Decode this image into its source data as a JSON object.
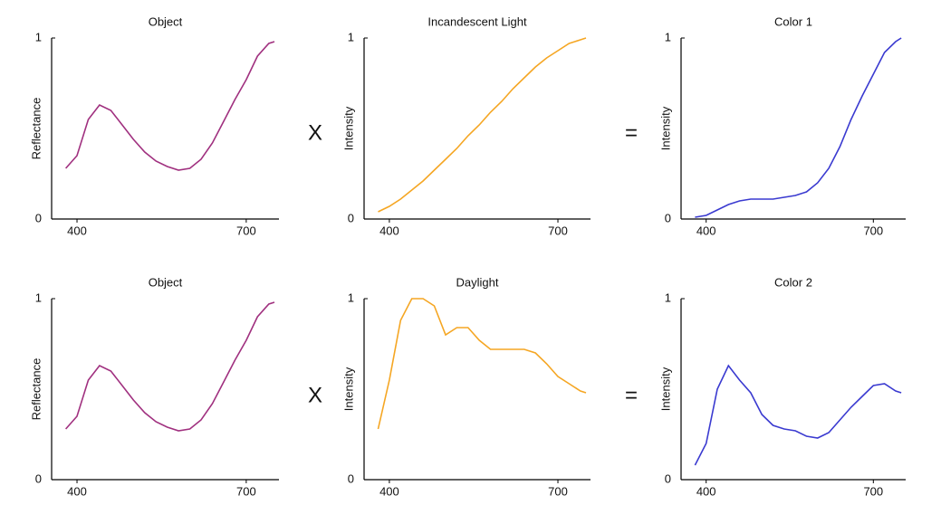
{
  "chart_data": [
    {
      "type": "line",
      "title": "Object",
      "ylabel": "Reflectance",
      "color": "#a0307f",
      "x": [
        380,
        400,
        420,
        440,
        460,
        480,
        500,
        520,
        540,
        560,
        580,
        600,
        620,
        640,
        660,
        680,
        700,
        720,
        740,
        750
      ],
      "values": [
        0.28,
        0.35,
        0.55,
        0.63,
        0.6,
        0.52,
        0.44,
        0.37,
        0.32,
        0.29,
        0.27,
        0.28,
        0.33,
        0.42,
        0.54,
        0.66,
        0.77,
        0.9,
        0.97,
        0.98
      ],
      "xlim": [
        355,
        758
      ],
      "ylim": [
        0,
        1
      ],
      "xticks": [
        400,
        700
      ],
      "yticks": [
        0,
        1
      ]
    },
    {
      "type": "line",
      "title": "Incandescent Light",
      "ylabel": "Intensity",
      "color": "#f5a623",
      "x": [
        380,
        400,
        420,
        440,
        460,
        480,
        500,
        520,
        540,
        560,
        580,
        600,
        620,
        640,
        660,
        680,
        700,
        720,
        740,
        750
      ],
      "values": [
        0.04,
        0.07,
        0.11,
        0.16,
        0.21,
        0.27,
        0.33,
        0.39,
        0.46,
        0.52,
        0.59,
        0.65,
        0.72,
        0.78,
        0.84,
        0.89,
        0.93,
        0.97,
        0.99,
        1.0
      ],
      "xlim": [
        355,
        758
      ],
      "ylim": [
        0,
        1
      ],
      "xticks": [
        400,
        700
      ],
      "yticks": [
        0,
        1
      ]
    },
    {
      "type": "line",
      "title": "Color 1",
      "ylabel": "Intensity",
      "color": "#3a3ad0",
      "x": [
        380,
        400,
        420,
        440,
        460,
        480,
        500,
        520,
        540,
        560,
        580,
        600,
        620,
        640,
        660,
        680,
        700,
        720,
        740,
        750
      ],
      "values": [
        0.01,
        0.02,
        0.05,
        0.08,
        0.1,
        0.11,
        0.11,
        0.11,
        0.12,
        0.13,
        0.15,
        0.2,
        0.28,
        0.4,
        0.55,
        0.68,
        0.8,
        0.92,
        0.98,
        1.0
      ],
      "xlim": [
        355,
        758
      ],
      "ylim": [
        0,
        1
      ],
      "xticks": [
        400,
        700
      ],
      "yticks": [
        0,
        1
      ]
    },
    {
      "type": "line",
      "title": "Object",
      "ylabel": "Reflectance",
      "color": "#a0307f",
      "x": [
        380,
        400,
        420,
        440,
        460,
        480,
        500,
        520,
        540,
        560,
        580,
        600,
        620,
        640,
        660,
        680,
        700,
        720,
        740,
        750
      ],
      "values": [
        0.28,
        0.35,
        0.55,
        0.63,
        0.6,
        0.52,
        0.44,
        0.37,
        0.32,
        0.29,
        0.27,
        0.28,
        0.33,
        0.42,
        0.54,
        0.66,
        0.77,
        0.9,
        0.97,
        0.98
      ],
      "xlim": [
        355,
        758
      ],
      "ylim": [
        0,
        1
      ],
      "xticks": [
        400,
        700
      ],
      "yticks": [
        0,
        1
      ]
    },
    {
      "type": "line",
      "title": "Daylight",
      "ylabel": "Intensity",
      "color": "#f5a623",
      "x": [
        380,
        400,
        420,
        440,
        460,
        480,
        500,
        520,
        540,
        560,
        580,
        600,
        620,
        640,
        660,
        680,
        700,
        720,
        740,
        750
      ],
      "values": [
        0.28,
        0.55,
        0.88,
        1.0,
        1.0,
        0.96,
        0.8,
        0.84,
        0.84,
        0.77,
        0.72,
        0.72,
        0.72,
        0.72,
        0.7,
        0.64,
        0.57,
        0.53,
        0.49,
        0.48
      ],
      "xlim": [
        355,
        758
      ],
      "ylim": [
        0,
        1
      ],
      "xticks": [
        400,
        700
      ],
      "yticks": [
        0,
        1
      ]
    },
    {
      "type": "line",
      "title": "Color 2",
      "ylabel": "Intensity",
      "color": "#3a3ad0",
      "x": [
        380,
        400,
        420,
        440,
        460,
        480,
        500,
        520,
        540,
        560,
        580,
        600,
        620,
        640,
        660,
        680,
        700,
        720,
        740,
        750
      ],
      "values": [
        0.08,
        0.2,
        0.5,
        0.63,
        0.55,
        0.48,
        0.36,
        0.3,
        0.28,
        0.27,
        0.24,
        0.23,
        0.26,
        0.33,
        0.4,
        0.46,
        0.52,
        0.53,
        0.49,
        0.48
      ],
      "xlim": [
        355,
        758
      ],
      "ylim": [
        0,
        1
      ],
      "xticks": [
        400,
        700
      ],
      "yticks": [
        0,
        1
      ]
    }
  ],
  "operators": [
    "X",
    "=",
    "X",
    "="
  ]
}
